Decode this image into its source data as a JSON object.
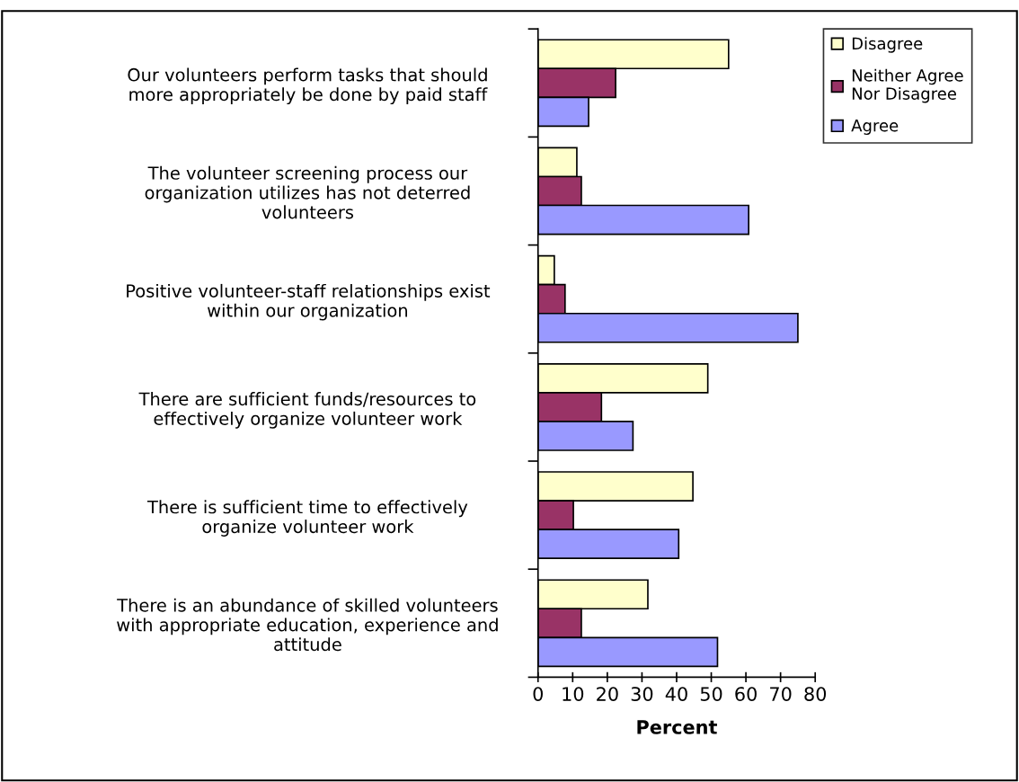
{
  "chart_data": {
    "type": "bar",
    "orientation": "horizontal",
    "xlabel": "Percent",
    "categories": [
      "Our volunteers perform tasks that should\nmore appropriately be done by paid staff",
      "The volunteer screening process our\norganization utilizes has not deterred\nvolunteers",
      "Positive volunteer-staff relationships exist\nwithin our organization",
      "There are sufficient funds/resources to\neffectively organize volunteer work",
      "There is sufficient time to effectively\norganize volunteer work",
      "There is an abundance of skilled volunteers\nwith appropriate education, experience and\nattitude"
    ],
    "series": [
      {
        "name": "Disagree",
        "color": "#ffffcc",
        "values": [
          55,
          11.2,
          4.7,
          49.0,
          44.7,
          31.7
        ]
      },
      {
        "name": "Neither Agree\nNor Disagree",
        "color": "#993366",
        "values": [
          22.4,
          12.5,
          7.8,
          18.3,
          10.2,
          12.5
        ]
      },
      {
        "name": "Agree",
        "color": "#9999ff",
        "values": [
          14.6,
          60.8,
          75.0,
          27.4,
          40.6,
          51.8
        ]
      }
    ],
    "xlim": [
      0,
      80
    ],
    "xticks": [
      0,
      10,
      20,
      30,
      40,
      50,
      60,
      70,
      80
    ],
    "grid": false,
    "legend": "right"
  }
}
